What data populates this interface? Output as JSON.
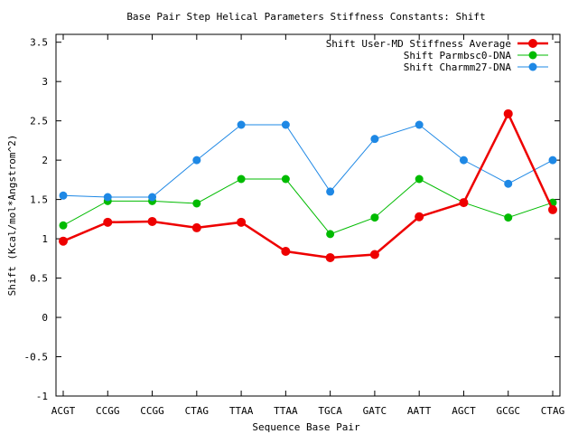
{
  "chart_data": {
    "type": "line",
    "title": "Base Pair Step Helical Parameters Stiffness Constants: Shift",
    "xlabel": "Sequence Base Pair",
    "ylabel": "Shift (Kcal/mol*Angstrom^2)",
    "categories": [
      "ACGT",
      "CCGG",
      "CCGG",
      "CTAG",
      "TTAA",
      "TTAA",
      "TGCA",
      "GATC",
      "AATT",
      "AGCT",
      "GCGC",
      "CTAG"
    ],
    "ylim": [
      -1,
      3.6
    ],
    "yticks": [
      -1,
      -0.5,
      0,
      0.5,
      1,
      1.5,
      2,
      2.5,
      3,
      3.5
    ],
    "ytick_labels": [
      "-1",
      "-0.5",
      "0",
      "0.5",
      "1",
      "1.5",
      "2",
      "2.5",
      "3",
      "3.5"
    ],
    "grid": false,
    "legend_position": "top-right",
    "series": [
      {
        "name": "Shift User-MD Stiffness Average",
        "color": "#ee0000",
        "line_width": "thick",
        "values": [
          0.97,
          1.21,
          1.22,
          1.14,
          1.21,
          0.84,
          0.76,
          0.8,
          1.28,
          1.46,
          2.59,
          1.37
        ]
      },
      {
        "name": "Shift Parmbsc0-DNA",
        "color": "#00bb00",
        "line_width": "thin",
        "values": [
          1.17,
          1.48,
          1.48,
          1.45,
          1.76,
          1.76,
          1.06,
          1.27,
          1.76,
          1.46,
          1.27,
          1.46
        ]
      },
      {
        "name": "Shift Charmm27-DNA",
        "color": "#1e88e5",
        "line_width": "thin",
        "values": [
          1.55,
          1.53,
          1.53,
          2.0,
          2.45,
          2.45,
          1.6,
          2.27,
          2.45,
          2.0,
          1.7,
          2.0
        ]
      }
    ]
  }
}
